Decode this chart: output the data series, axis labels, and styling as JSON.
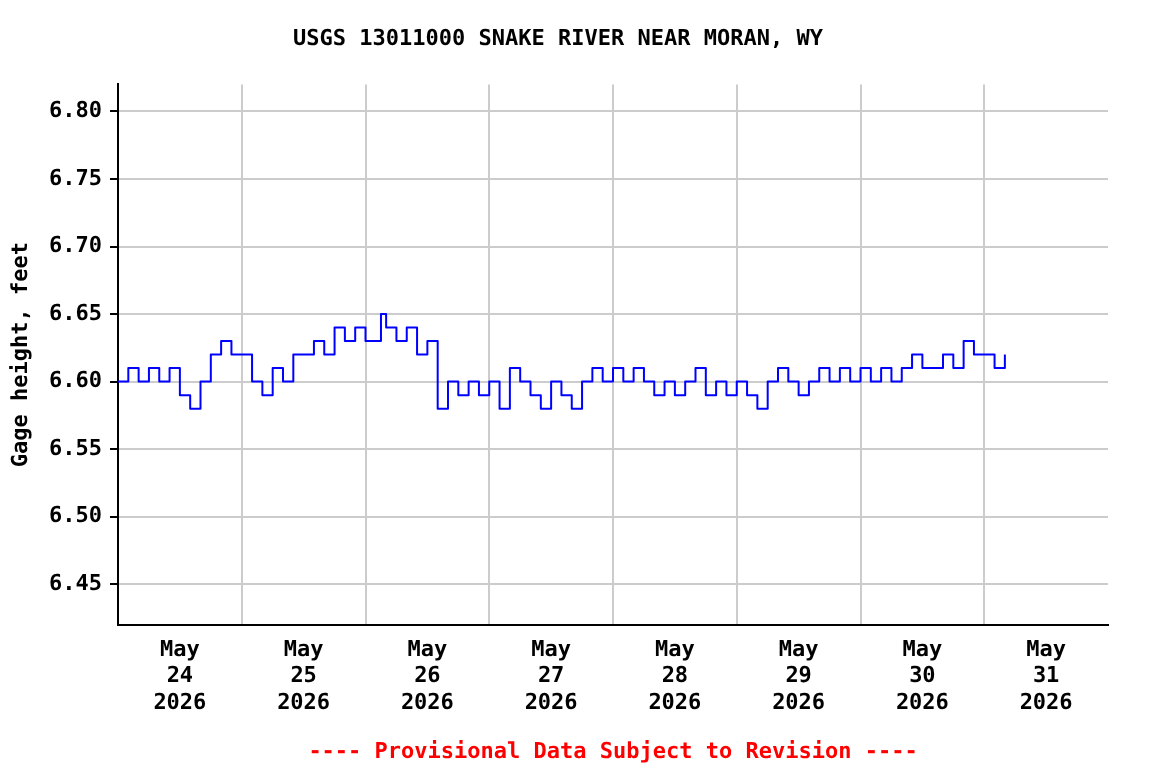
{
  "chart_data": {
    "type": "step",
    "title": "USGS 13011000 SNAKE RIVER NEAR MORAN, WY",
    "ylabel": "Gage height, feet",
    "annotations": [
      "---- Provisional Data Subject to Revision ----"
    ],
    "x": [
      "2026-05-24T00:00",
      "2026-05-24T02:00",
      "2026-05-24T04:00",
      "2026-05-24T06:00",
      "2026-05-24T08:00",
      "2026-05-24T10:00",
      "2026-05-24T12:00",
      "2026-05-24T14:00",
      "2026-05-24T16:00",
      "2026-05-24T18:00",
      "2026-05-24T20:00",
      "2026-05-24T22:00",
      "2026-05-25T00:00",
      "2026-05-25T02:00",
      "2026-05-25T04:00",
      "2026-05-25T06:00",
      "2026-05-25T08:00",
      "2026-05-25T10:00",
      "2026-05-25T12:00",
      "2026-05-25T14:00",
      "2026-05-25T16:00",
      "2026-05-25T18:00",
      "2026-05-25T20:00",
      "2026-05-25T22:00",
      "2026-05-26T00:00",
      "2026-05-26T03:00",
      "2026-05-26T04:00",
      "2026-05-26T06:00",
      "2026-05-26T08:00",
      "2026-05-26T10:00",
      "2026-05-26T12:00",
      "2026-05-26T14:00",
      "2026-05-26T16:00",
      "2026-05-26T18:00",
      "2026-05-26T20:00",
      "2026-05-26T22:00",
      "2026-05-27T00:00",
      "2026-05-27T02:00",
      "2026-05-27T04:00",
      "2026-05-27T06:00",
      "2026-05-27T08:00",
      "2026-05-27T10:00",
      "2026-05-27T12:00",
      "2026-05-27T14:00",
      "2026-05-27T16:00",
      "2026-05-27T18:00",
      "2026-05-27T20:00",
      "2026-05-27T22:00",
      "2026-05-28T00:00",
      "2026-05-28T02:00",
      "2026-05-28T04:00",
      "2026-05-28T06:00",
      "2026-05-28T08:00",
      "2026-05-28T10:00",
      "2026-05-28T12:00",
      "2026-05-28T14:00",
      "2026-05-28T16:00",
      "2026-05-28T18:00",
      "2026-05-28T20:00",
      "2026-05-28T22:00",
      "2026-05-29T00:00",
      "2026-05-29T02:00",
      "2026-05-29T04:00",
      "2026-05-29T06:00",
      "2026-05-29T08:00",
      "2026-05-29T10:00",
      "2026-05-29T12:00",
      "2026-05-29T14:00",
      "2026-05-29T16:00",
      "2026-05-29T18:00",
      "2026-05-29T20:00",
      "2026-05-29T22:00",
      "2026-05-30T00:00",
      "2026-05-30T02:00",
      "2026-05-30T04:00",
      "2026-05-30T06:00",
      "2026-05-30T08:00",
      "2026-05-30T10:00",
      "2026-05-30T12:00",
      "2026-05-30T14:00",
      "2026-05-30T16:00",
      "2026-05-30T18:00",
      "2026-05-30T20:00",
      "2026-05-30T22:00",
      "2026-05-31T00:00",
      "2026-05-31T02:00",
      "2026-05-31T04:00"
    ],
    "series": [
      {
        "color": "#0000ff",
        "values": [
          6.6,
          6.61,
          6.6,
          6.61,
          6.6,
          6.61,
          6.59,
          6.58,
          6.6,
          6.62,
          6.63,
          6.62,
          6.62,
          6.6,
          6.59,
          6.61,
          6.6,
          6.62,
          6.62,
          6.63,
          6.62,
          6.64,
          6.63,
          6.64,
          6.63,
          6.65,
          6.64,
          6.63,
          6.64,
          6.62,
          6.63,
          6.58,
          6.6,
          6.59,
          6.6,
          6.59,
          6.6,
          6.58,
          6.61,
          6.6,
          6.59,
          6.58,
          6.6,
          6.59,
          6.58,
          6.6,
          6.61,
          6.6,
          6.61,
          6.6,
          6.61,
          6.6,
          6.59,
          6.6,
          6.59,
          6.6,
          6.61,
          6.59,
          6.6,
          6.59,
          6.6,
          6.59,
          6.58,
          6.6,
          6.61,
          6.6,
          6.59,
          6.6,
          6.61,
          6.6,
          6.61,
          6.6,
          6.61,
          6.6,
          6.61,
          6.6,
          6.61,
          6.62,
          6.61,
          6.61,
          6.62,
          6.61,
          6.63,
          6.62,
          6.62,
          6.61,
          6.62
        ]
      }
    ],
    "xlim": [
      "2026-05-24T00:00",
      "2026-06-01T00:00"
    ],
    "xticks": [
      {
        "value": "2026-05-24T12:00",
        "label": "May\n24\n2026"
      },
      {
        "value": "2026-05-25T00:00",
        "label": null
      },
      {
        "value": "2026-05-25T12:00",
        "label": "May\n25\n2026"
      },
      {
        "value": "2026-05-26T00:00",
        "label": null
      },
      {
        "value": "2026-05-26T12:00",
        "label": "May\n26\n2026"
      },
      {
        "value": "2026-05-27T00:00",
        "label": null
      },
      {
        "value": "2026-05-27T12:00",
        "label": "May\n27\n2026"
      },
      {
        "value": "2026-05-28T00:00",
        "label": null
      },
      {
        "value": "2026-05-28T12:00",
        "label": "May\n28\n2026"
      },
      {
        "value": "2026-05-29T00:00",
        "label": null
      },
      {
        "value": "2026-05-29T12:00",
        "label": "May\n29\n2026"
      },
      {
        "value": "2026-05-30T00:00",
        "label": null
      },
      {
        "value": "2026-05-30T12:00",
        "label": "May\n30\n2026"
      },
      {
        "value": "2026-05-31T00:00",
        "label": null
      },
      {
        "value": "2026-05-31T12:00",
        "label": "May\n31\n2026"
      }
    ],
    "ylim": [
      6.42,
      6.82
    ],
    "yticks": [
      {
        "value": 6.45,
        "label": "6.45"
      },
      {
        "value": 6.5,
        "label": "6.50"
      },
      {
        "value": 6.55,
        "label": "6.55"
      },
      {
        "value": 6.6,
        "label": "6.60"
      },
      {
        "value": 6.65,
        "label": "6.65"
      },
      {
        "value": 6.7,
        "label": "6.70"
      },
      {
        "value": 6.75,
        "label": "6.75"
      },
      {
        "value": 6.8,
        "label": "6.80"
      }
    ],
    "grid": true,
    "legend": false,
    "marker": "none",
    "line_style": "solid"
  }
}
